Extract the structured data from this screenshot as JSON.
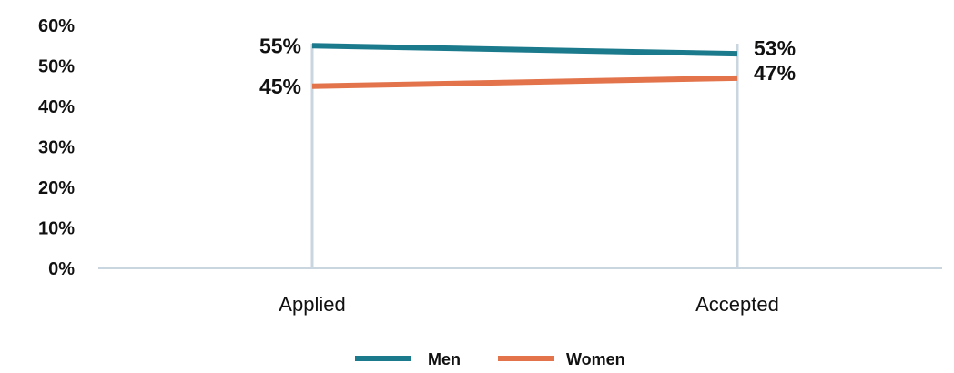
{
  "chart_data": {
    "type": "line",
    "categories": [
      "Applied",
      "Accepted"
    ],
    "series": [
      {
        "name": "Men",
        "values": [
          55,
          53
        ],
        "labels": [
          "55%",
          "53%"
        ],
        "color": "#1b7a8c"
      },
      {
        "name": "Women",
        "values": [
          45,
          47
        ],
        "labels": [
          "45%",
          "47%"
        ],
        "color": "#e2734a"
      }
    ],
    "ylim": [
      0,
      60
    ],
    "yticks": [
      "0%",
      "10%",
      "20%",
      "30%",
      "40%",
      "50%",
      "60%"
    ],
    "ytick_values": [
      0,
      10,
      20,
      30,
      40,
      50,
      60
    ],
    "grid": false,
    "legend": "bottom-center",
    "colors": {
      "axis": "#c9d6df",
      "category_lines": "#c9d6df",
      "text": "#111111"
    }
  }
}
